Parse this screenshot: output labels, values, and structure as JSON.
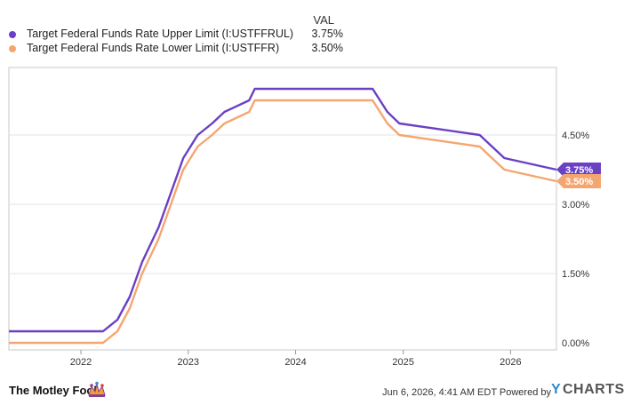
{
  "legend": {
    "header": "VAL",
    "series": [
      {
        "name": "Target Federal Funds Rate Upper Limit (I:USTFFRUL)",
        "value": "3.75%",
        "color": "#6a40c4"
      },
      {
        "name": "Target Federal Funds Rate Lower Limit (I:USTFFR)",
        "value": "3.50%",
        "color": "#f5a670"
      }
    ]
  },
  "chart_data": {
    "type": "line",
    "x_ticks": [
      "2022",
      "2023",
      "2024",
      "2025",
      "2026"
    ],
    "y_ticks": [
      "0.00%",
      "1.50%",
      "3.00%",
      "4.50%"
    ],
    "ylim": [
      0,
      6
    ],
    "xlim": [
      "2021-05-01",
      "2026-06-06"
    ],
    "grid": "horizontal",
    "series": [
      {
        "name": "Target Federal Funds Rate Upper Limit (I:USTFFRUL)",
        "color": "#6a40c4",
        "end_label": "3.75%",
        "points": [
          [
            "2021-05-01",
            0.25
          ],
          [
            "2022-03-17",
            0.25
          ],
          [
            "2022-05-05",
            0.5
          ],
          [
            "2022-06-16",
            1.0
          ],
          [
            "2022-07-28",
            1.75
          ],
          [
            "2022-09-22",
            2.5
          ],
          [
            "2022-11-03",
            3.25
          ],
          [
            "2022-12-15",
            4.0
          ],
          [
            "2023-02-02",
            4.5
          ],
          [
            "2023-03-23",
            4.75
          ],
          [
            "2023-05-04",
            5.0
          ],
          [
            "2023-07-27",
            5.25
          ],
          [
            "2023-08-15",
            5.5
          ],
          [
            "2024-09-19",
            5.5
          ],
          [
            "2024-11-08",
            5.0
          ],
          [
            "2024-12-19",
            4.75
          ],
          [
            "2025-09-18",
            4.5
          ],
          [
            "2025-10-30",
            4.25
          ],
          [
            "2025-12-11",
            4.0
          ],
          [
            "2026-06-06",
            3.75
          ]
        ]
      },
      {
        "name": "Target Federal Funds Rate Lower Limit (I:USTFFR)",
        "color": "#f5a670",
        "end_label": "3.50%",
        "points": [
          [
            "2021-05-01",
            0.0
          ],
          [
            "2022-03-17",
            0.0
          ],
          [
            "2022-05-05",
            0.25
          ],
          [
            "2022-06-16",
            0.75
          ],
          [
            "2022-07-28",
            1.5
          ],
          [
            "2022-09-22",
            2.25
          ],
          [
            "2022-11-03",
            3.0
          ],
          [
            "2022-12-15",
            3.75
          ],
          [
            "2023-02-02",
            4.25
          ],
          [
            "2023-03-23",
            4.5
          ],
          [
            "2023-05-04",
            4.75
          ],
          [
            "2023-07-27",
            5.0
          ],
          [
            "2023-08-15",
            5.25
          ],
          [
            "2024-09-19",
            5.25
          ],
          [
            "2024-11-08",
            4.75
          ],
          [
            "2024-12-19",
            4.5
          ],
          [
            "2025-09-18",
            4.25
          ],
          [
            "2025-10-30",
            4.0
          ],
          [
            "2025-12-11",
            3.75
          ],
          [
            "2026-06-06",
            3.5
          ]
        ]
      }
    ]
  },
  "footer": {
    "brand": "The Motley Fool",
    "attribution": "Jun 6, 2026, 4:41 AM EDT Powered by",
    "ycharts_y": "Y",
    "ycharts_rest": "CHARTS"
  }
}
